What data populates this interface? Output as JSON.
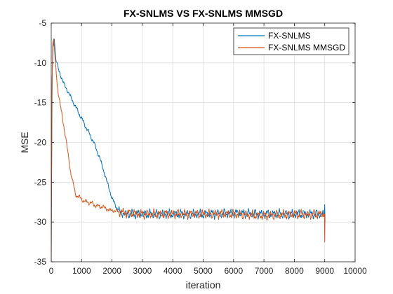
{
  "chart_data": {
    "type": "line",
    "title": "FX-SNLMS VS FX-SNLMS MMSGD",
    "xlabel": "iteration",
    "ylabel": "MSE",
    "xlim": [
      0,
      10000
    ],
    "ylim": [
      -35,
      -5
    ],
    "xticks": [
      0,
      1000,
      2000,
      3000,
      4000,
      5000,
      6000,
      7000,
      8000,
      9000,
      10000
    ],
    "xtick_labels": [
      "0",
      "1000",
      "2000",
      "3000",
      "4000",
      "5000",
      "6000",
      "7000",
      "8000",
      "9000",
      "10000"
    ],
    "yticks": [
      -35,
      -30,
      -25,
      -20,
      -15,
      -10,
      -5
    ],
    "ytick_labels": [
      "-35",
      "-30",
      "-25",
      "-20",
      "-15",
      "-10",
      "-5"
    ],
    "grid": true,
    "legend_position": "top-right",
    "series": [
      {
        "name": "FX-SNLMS",
        "color": "#0072BD",
        "points": [
          [
            0,
            -34
          ],
          [
            30,
            -12
          ],
          [
            60,
            -8
          ],
          [
            100,
            -7
          ],
          [
            150,
            -9.5
          ],
          [
            250,
            -11
          ],
          [
            400,
            -12.5
          ],
          [
            600,
            -14
          ],
          [
            800,
            -15.5
          ],
          [
            1000,
            -17
          ],
          [
            1200,
            -18.5
          ],
          [
            1400,
            -20
          ],
          [
            1600,
            -22
          ],
          [
            1800,
            -24.5
          ],
          [
            2000,
            -27
          ],
          [
            2150,
            -28.2
          ],
          [
            2300,
            -28.9
          ],
          [
            2500,
            -29
          ],
          [
            3000,
            -29
          ],
          [
            4000,
            -29
          ],
          [
            5000,
            -29
          ],
          [
            6000,
            -28.9
          ],
          [
            7000,
            -29
          ],
          [
            8000,
            -29
          ],
          [
            8900,
            -29
          ],
          [
            8990,
            -29
          ],
          [
            9000,
            -27.8
          ],
          [
            9010,
            -30
          ]
        ]
      },
      {
        "name": "FX-SNLMS MMSGD",
        "color": "#D95319",
        "points": [
          [
            0,
            -35
          ],
          [
            20,
            -15
          ],
          [
            50,
            -7.5
          ],
          [
            80,
            -7
          ],
          [
            120,
            -9
          ],
          [
            200,
            -13
          ],
          [
            350,
            -16.5
          ],
          [
            500,
            -20
          ],
          [
            650,
            -24
          ],
          [
            800,
            -26.5
          ],
          [
            950,
            -27
          ],
          [
            1100,
            -27.4
          ],
          [
            1300,
            -27.6
          ],
          [
            1500,
            -28
          ],
          [
            1700,
            -28.1
          ],
          [
            1900,
            -28.5
          ],
          [
            2100,
            -28.6
          ],
          [
            2500,
            -28.9
          ],
          [
            3000,
            -29
          ],
          [
            4000,
            -29
          ],
          [
            5000,
            -29
          ],
          [
            6000,
            -29
          ],
          [
            7000,
            -29.2
          ],
          [
            8000,
            -29
          ],
          [
            8500,
            -29.1
          ],
          [
            8990,
            -29
          ],
          [
            9000,
            -32.5
          ],
          [
            9010,
            -29
          ]
        ]
      }
    ]
  }
}
